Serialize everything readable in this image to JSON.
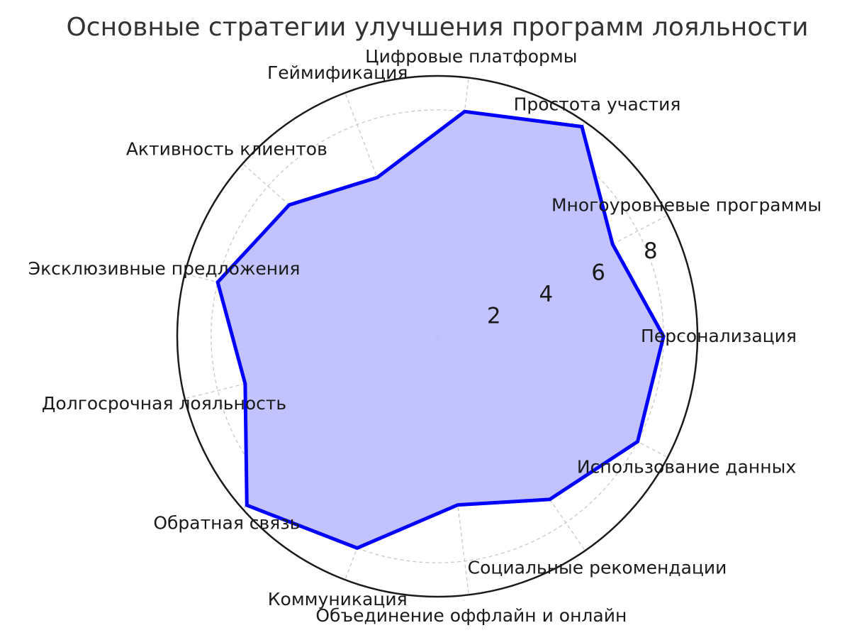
{
  "chart_data": {
    "type": "radar",
    "title": "Основные стратегии улучшения программ лояльности",
    "categories": [
      "Персонализация",
      "Многоуровневые программы",
      "Простота участия",
      "Цифровые платформы",
      "Геймификация",
      "Активность клиентов",
      "Эксклюзивные предложения",
      "Долгосрочная лояльность",
      "Обратная связь",
      "Коммуникация",
      "Объединение оффлайн и онлайн",
      "Социальные рекомендации",
      "Использование данных"
    ],
    "values": [
      8,
      7,
      9,
      8,
      6,
      7,
      8,
      7,
      9,
      8,
      6,
      7,
      8
    ],
    "radial_ticks": [
      "2",
      "4",
      "6",
      "8"
    ],
    "radial_tick_values": [
      2,
      4,
      6,
      8
    ],
    "rlim": [
      0,
      9.2
    ],
    "grid": true,
    "colors": {
      "line": "#0000ff",
      "fill": "#bfbfff",
      "grid": "#c8c8c8",
      "frame": "#1a1a1a"
    }
  }
}
